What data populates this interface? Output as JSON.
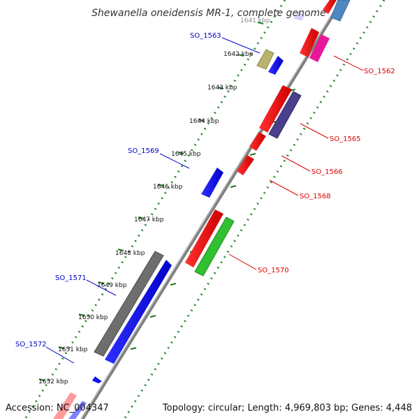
{
  "title": "Shewanella oneidensis MR-1, complete genome",
  "footer": {
    "accession": "Accession: NC_004347",
    "summary": "Topology: circular; Length: 4,969,803 bp; Genes: 4,448"
  },
  "colors": {
    "forward_label": "#0000cc",
    "reverse_label": "#dd0000",
    "backbone": "#888888",
    "tick": "#2a8a2a"
  },
  "scale_labels": [
    "1641 kbp",
    "1642 kbp",
    "1643 kbp",
    "1644 kbp",
    "1645 kbp",
    "1646 kbp",
    "1647 kbp",
    "1648 kbp",
    "1649 kbp",
    "1650 kbp",
    "1651 kbp",
    "1652 kbp"
  ],
  "gene_labels": [
    {
      "name": "SO_1563",
      "strand": "forward"
    },
    {
      "name": "SO_1569",
      "strand": "forward"
    },
    {
      "name": "SO_1571",
      "strand": "forward"
    },
    {
      "name": "SO_1572",
      "strand": "forward"
    },
    {
      "name": "SO_1562",
      "strand": "reverse"
    },
    {
      "name": "SO_1565",
      "strand": "reverse"
    },
    {
      "name": "SO_1566",
      "strand": "reverse"
    },
    {
      "name": "SO_1568",
      "strand": "reverse"
    },
    {
      "name": "SO_1570",
      "strand": "reverse"
    }
  ]
}
